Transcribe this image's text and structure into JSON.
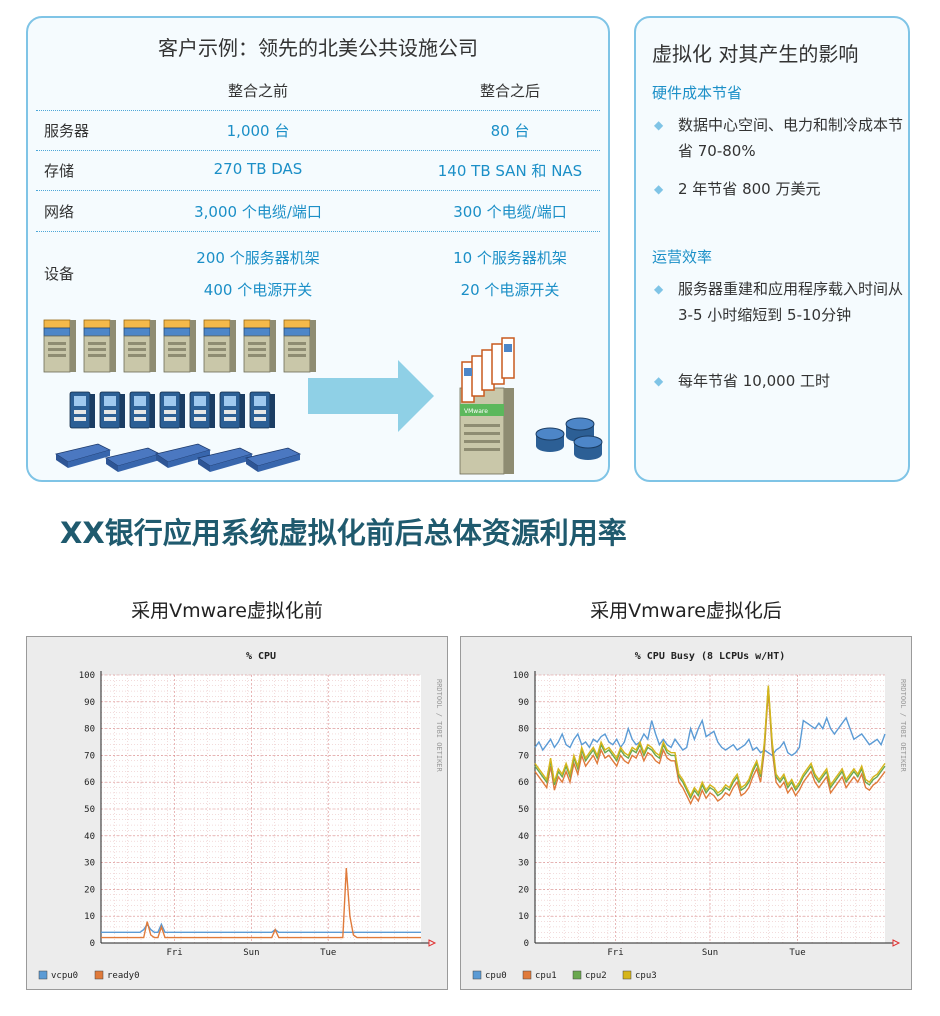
{
  "left_panel": {
    "title": "客户示例：领先的北美公共设施公司",
    "col_before": "整合之前",
    "col_after": "整合之后",
    "rows": [
      {
        "label": "服务器",
        "before": [
          "1,000 台"
        ],
        "after": [
          "80 台"
        ]
      },
      {
        "label": "存储",
        "before": [
          "270 TB DAS"
        ],
        "after": [
          "140 TB SAN 和 NAS"
        ]
      },
      {
        "label": "网络",
        "before": [
          "3,000 个电缆/端口"
        ],
        "after": [
          "300 个电缆/端口"
        ]
      },
      {
        "label": "设备",
        "before": [
          "200 个服务器机架",
          "400 个电源开关"
        ],
        "after": [
          "10 个服务器机架",
          "20 个电源开关"
        ]
      }
    ],
    "illustration": {
      "before_icons": [
        "server-tower-icon",
        "rack-unit-icon",
        "network-switch-icon"
      ],
      "arrow_icon": "right-arrow-icon",
      "after_icons": [
        "virtualized-server-icon",
        "storage-cylinders-icon"
      ],
      "vm_label": "VMware",
      "accent_color": "#8fd0e6"
    }
  },
  "right_panel": {
    "title": "虚拟化 对其产生的影响",
    "sections": [
      {
        "heading": "硬件成本节省",
        "bullets": [
          "数据中心空间、电力和制冷成本节省 70-80%",
          "2 年节省 800 万美元"
        ]
      },
      {
        "heading": "运营效率",
        "bullets": [
          "服务器重建和应用程序载入时间从 3-5 小时缩短到 5-10分钟",
          "每年节省 10,000 工时"
        ]
      }
    ],
    "bullet_icon": "diamond-bullet-icon"
  },
  "headline": "XX银行应用系统虚拟化前后总体资源利用率",
  "charts": [
    {
      "caption": "采用Vmware虚拟化前",
      "side_label": "RRDTOOL / TOBI OETIKER"
    },
    {
      "caption": "采用Vmware虚拟化后",
      "side_label": "RRDTOOL / TOBI OETIKER"
    }
  ],
  "chart_data": [
    {
      "type": "line",
      "title": "% CPU",
      "xlabel": "",
      "ylabel": "",
      "ylim": [
        0,
        100
      ],
      "yticks": [
        0,
        10,
        20,
        30,
        40,
        50,
        60,
        70,
        80,
        90,
        100
      ],
      "x_ticks": [
        "Fri",
        "Sun",
        "Tue"
      ],
      "grid": true,
      "legend": "bottom-left",
      "series": [
        {
          "name": "vcpu0",
          "color": "#5b9bd5",
          "values": [
            4,
            4,
            4,
            4,
            4,
            4,
            4,
            4,
            4,
            4,
            4,
            4,
            5,
            7,
            5,
            4,
            4,
            7,
            4,
            4,
            4,
            4,
            4,
            4,
            4,
            4,
            4,
            4,
            4,
            4,
            4,
            4,
            4,
            4,
            4,
            4,
            4,
            4,
            4,
            4,
            4,
            4,
            4,
            4,
            4,
            4,
            4,
            4,
            4,
            5,
            4,
            4,
            4,
            4,
            4,
            4,
            4,
            4,
            4,
            4,
            4,
            4,
            4,
            4,
            4,
            4,
            4,
            4,
            4,
            4,
            4,
            4,
            4,
            4,
            4,
            4,
            4,
            4,
            4,
            4,
            4,
            4,
            4,
            4,
            4,
            4,
            4,
            4,
            4,
            4,
            4
          ]
        },
        {
          "name": "ready0",
          "color": "#e07a3a",
          "values": [
            2,
            2,
            2,
            2,
            2,
            2,
            2,
            2,
            2,
            2,
            2,
            2,
            2,
            8,
            3,
            2,
            2,
            6,
            2,
            2,
            2,
            2,
            2,
            2,
            2,
            2,
            2,
            2,
            2,
            2,
            2,
            2,
            2,
            2,
            2,
            2,
            2,
            2,
            2,
            2,
            2,
            2,
            2,
            2,
            2,
            2,
            2,
            2,
            2,
            5,
            2,
            2,
            2,
            2,
            2,
            2,
            2,
            2,
            2,
            2,
            2,
            2,
            2,
            2,
            2,
            2,
            2,
            2,
            2,
            28,
            10,
            3,
            2,
            2,
            2,
            2,
            2,
            2,
            2,
            2,
            2,
            2,
            2,
            2,
            2,
            2,
            2,
            2,
            2,
            2,
            2
          ]
        }
      ]
    },
    {
      "type": "line",
      "title": "% CPU Busy (8 LCPUs w/HT)",
      "xlabel": "",
      "ylabel": "",
      "ylim": [
        0,
        100
      ],
      "yticks": [
        0,
        10,
        20,
        30,
        40,
        50,
        60,
        70,
        80,
        90,
        100
      ],
      "x_ticks": [
        "Fri",
        "Sun",
        "Tue"
      ],
      "grid": true,
      "legend": "bottom-left",
      "series": [
        {
          "name": "cpu0",
          "color": "#5b9bd5",
          "values": [
            73,
            75,
            72,
            74,
            76,
            73,
            75,
            78,
            74,
            73,
            76,
            78,
            74,
            75,
            73,
            76,
            75,
            77,
            78,
            75,
            74,
            76,
            73,
            75,
            80,
            76,
            74,
            75,
            78,
            76,
            83,
            78,
            74,
            76,
            74,
            73,
            76,
            74,
            72,
            73,
            80,
            76,
            80,
            83,
            77,
            78,
            79,
            75,
            73,
            72,
            73,
            74,
            72,
            73,
            74,
            76,
            72,
            73,
            71,
            72,
            71,
            70,
            72,
            73,
            75,
            71,
            70,
            71,
            73,
            83,
            82,
            81,
            80,
            82,
            80,
            84,
            80,
            78,
            80,
            82,
            84,
            80,
            76,
            77,
            78,
            76,
            74,
            75,
            76,
            74,
            78
          ]
        },
        {
          "name": "cpu1",
          "color": "#e07a3a",
          "values": [
            64,
            62,
            60,
            58,
            66,
            57,
            62,
            60,
            64,
            60,
            67,
            63,
            70,
            66,
            68,
            70,
            67,
            72,
            69,
            70,
            68,
            66,
            70,
            68,
            67,
            70,
            69,
            72,
            68,
            71,
            70,
            68,
            67,
            72,
            69,
            68,
            68,
            60,
            58,
            55,
            52,
            55,
            53,
            57,
            54,
            56,
            55,
            53,
            54,
            56,
            55,
            58,
            60,
            55,
            56,
            58,
            62,
            65,
            60,
            72,
            94,
            72,
            60,
            58,
            60,
            56,
            58,
            55,
            57,
            60,
            62,
            64,
            60,
            58,
            60,
            62,
            56,
            58,
            60,
            62,
            58,
            60,
            62,
            60,
            63,
            58,
            57,
            59,
            60,
            62,
            64
          ]
        },
        {
          "name": "cpu2",
          "color": "#6aa84f",
          "values": [
            66,
            64,
            62,
            60,
            68,
            59,
            64,
            62,
            66,
            62,
            69,
            65,
            72,
            68,
            70,
            72,
            69,
            74,
            71,
            72,
            70,
            68,
            72,
            70,
            69,
            72,
            71,
            74,
            70,
            73,
            72,
            70,
            69,
            74,
            71,
            70,
            70,
            62,
            60,
            57,
            54,
            57,
            55,
            59,
            56,
            58,
            57,
            55,
            56,
            58,
            57,
            60,
            62,
            57,
            58,
            60,
            64,
            67,
            62,
            74,
            96,
            74,
            62,
            60,
            62,
            58,
            60,
            57,
            59,
            62,
            64,
            66,
            62,
            60,
            62,
            64,
            58,
            60,
            62,
            64,
            60,
            62,
            64,
            62,
            65,
            60,
            59,
            61,
            62,
            64,
            66
          ]
        },
        {
          "name": "cpu3",
          "color": "#d6b51a",
          "values": [
            67,
            65,
            63,
            61,
            69,
            60,
            65,
            63,
            67,
            63,
            70,
            66,
            73,
            69,
            71,
            73,
            70,
            75,
            72,
            73,
            71,
            69,
            73,
            71,
            70,
            73,
            72,
            75,
            71,
            74,
            73,
            71,
            70,
            75,
            72,
            71,
            71,
            63,
            61,
            58,
            55,
            58,
            56,
            60,
            57,
            59,
            58,
            56,
            57,
            59,
            58,
            61,
            63,
            58,
            59,
            61,
            65,
            68,
            63,
            75,
            96,
            75,
            63,
            61,
            63,
            59,
            61,
            58,
            60,
            63,
            65,
            67,
            63,
            61,
            63,
            65,
            59,
            61,
            63,
            65,
            61,
            63,
            65,
            63,
            66,
            61,
            60,
            62,
            63,
            65,
            67
          ]
        }
      ]
    }
  ]
}
